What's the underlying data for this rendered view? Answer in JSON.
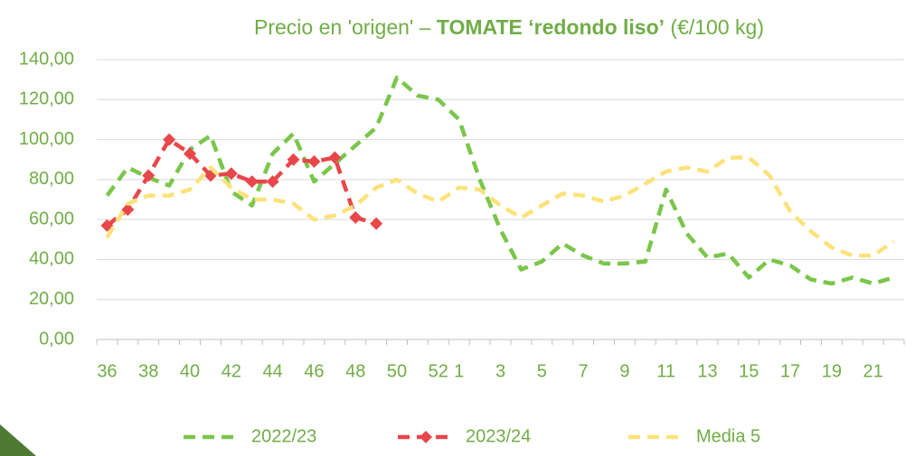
{
  "chart_data": {
    "type": "line",
    "title": [
      "Precio en 'origen' – ",
      "TOMATE ‘redondo liso’",
      " (€/100 kg)"
    ],
    "categories": [
      "36",
      null,
      "38",
      null,
      "40",
      null,
      "42",
      null,
      "44",
      null,
      "46",
      null,
      "48",
      null,
      "50",
      null,
      "52",
      "1",
      null,
      "3",
      null,
      "5",
      null,
      "7",
      null,
      "9",
      null,
      "11",
      null,
      "13",
      null,
      "15",
      null,
      "17",
      null,
      "19",
      null,
      "21",
      null
    ],
    "series": [
      {
        "name": "2022/23",
        "color": "#7ac64a",
        "values": [
          72,
          86,
          81,
          77,
          95,
          102,
          74,
          67,
          93,
          103,
          79,
          88,
          97,
          106,
          131,
          122,
          120,
          110,
          80,
          55,
          35,
          39,
          48,
          42,
          38,
          38,
          39,
          75,
          53,
          41,
          43,
          31,
          40,
          37,
          30,
          28,
          31,
          28,
          31
        ]
      },
      {
        "name": "2023/24",
        "color": "#e8474a",
        "marker": "diamond",
        "values": [
          57,
          65,
          82,
          100,
          93,
          82,
          83,
          79,
          79,
          90,
          89,
          91,
          61,
          58,
          null,
          null,
          null,
          null,
          null,
          null,
          null,
          null,
          null,
          null,
          null,
          null,
          null,
          null,
          null,
          null,
          null,
          null,
          null,
          null,
          null,
          null,
          null,
          null,
          null
        ]
      },
      {
        "name": "Media 5",
        "color": "#fce27a",
        "values": [
          51,
          68,
          72,
          72,
          75,
          86,
          76,
          70,
          70,
          68,
          60,
          62,
          67,
          76,
          80,
          73,
          69,
          76,
          75,
          67,
          61,
          67,
          73,
          72,
          69,
          72,
          78,
          84,
          86,
          84,
          91,
          91,
          82,
          64,
          54,
          46,
          42,
          42,
          49
        ]
      }
    ],
    "ylim": [
      0,
      140
    ],
    "yticks": [
      {
        "value": 0,
        "label": "0,00"
      },
      {
        "value": 20,
        "label": "20,00"
      },
      {
        "value": 40,
        "label": "40,00"
      },
      {
        "value": 60,
        "label": "60,00"
      },
      {
        "value": 80,
        "label": "80,00"
      },
      {
        "value": 100,
        "label": "100,00"
      },
      {
        "value": 120,
        "label": "120,00"
      },
      {
        "value": 140,
        "label": "140,00"
      }
    ],
    "grid": true,
    "legend": "bottom"
  }
}
